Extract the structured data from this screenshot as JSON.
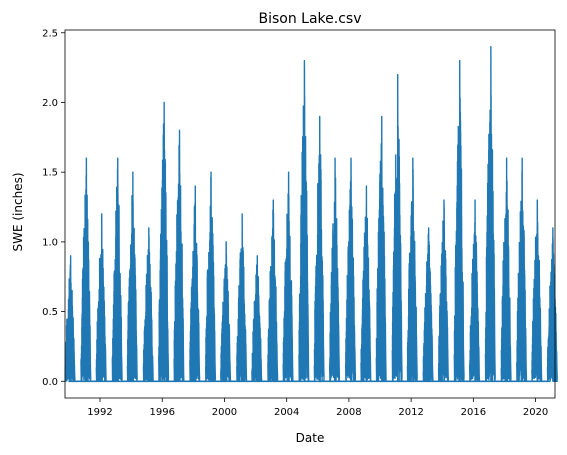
{
  "chart_data": {
    "type": "line",
    "title": "Bison Lake.csv",
    "xlabel": "Date",
    "ylabel": "SWE (inches)",
    "xlim": [
      "1989-10-01",
      "2021-04-01"
    ],
    "ylim": [
      -0.12,
      2.52
    ],
    "x_ticks": [
      "1992",
      "1996",
      "2000",
      "2004",
      "2008",
      "2012",
      "2016",
      "2020"
    ],
    "y_ticks": [
      "0.0",
      "0.5",
      "1.0",
      "1.5",
      "2.0",
      "2.5"
    ],
    "grid": false,
    "legend": "none",
    "series_color": "#1f77b4",
    "season_peaks": [
      {
        "season": "1990",
        "date": "1990-02-10",
        "peak_swe": 0.9
      },
      {
        "season": "1991",
        "date": "1991-02-15",
        "peak_swe": 1.6
      },
      {
        "season": "1992",
        "date": "1992-02-10",
        "peak_swe": 1.2
      },
      {
        "season": "1993",
        "date": "1993-02-20",
        "peak_swe": 1.6
      },
      {
        "season": "1994",
        "date": "1994-02-10",
        "peak_swe": 1.5
      },
      {
        "season": "1995",
        "date": "1995-02-20",
        "peak_swe": 1.1
      },
      {
        "season": "1996",
        "date": "1996-02-15",
        "peak_swe": 2.0
      },
      {
        "season": "1997",
        "date": "1997-02-10",
        "peak_swe": 1.8
      },
      {
        "season": "1998",
        "date": "1998-02-15",
        "peak_swe": 1.4
      },
      {
        "season": "1999",
        "date": "1999-02-20",
        "peak_swe": 1.5
      },
      {
        "season": "2000",
        "date": "2000-02-10",
        "peak_swe": 1.0
      },
      {
        "season": "2001",
        "date": "2001-02-20",
        "peak_swe": 1.2
      },
      {
        "season": "2002",
        "date": "2002-02-10",
        "peak_swe": 0.9
      },
      {
        "season": "2003",
        "date": "2003-02-20",
        "peak_swe": 1.3
      },
      {
        "season": "2004",
        "date": "2004-02-15",
        "peak_swe": 1.5
      },
      {
        "season": "2005",
        "date": "2005-02-20",
        "peak_swe": 2.3
      },
      {
        "season": "2006",
        "date": "2006-02-15",
        "peak_swe": 1.9
      },
      {
        "season": "2007",
        "date": "2007-02-10",
        "peak_swe": 1.6
      },
      {
        "season": "2008",
        "date": "2008-02-20",
        "peak_swe": 1.6
      },
      {
        "season": "2009",
        "date": "2009-02-15",
        "peak_swe": 1.4
      },
      {
        "season": "2010",
        "date": "2010-02-10",
        "peak_swe": 1.9
      },
      {
        "season": "2011",
        "date": "2011-02-20",
        "peak_swe": 2.2
      },
      {
        "season": "2012",
        "date": "2012-02-10",
        "peak_swe": 1.6
      },
      {
        "season": "2013",
        "date": "2013-02-15",
        "peak_swe": 1.1
      },
      {
        "season": "2014",
        "date": "2014-02-10",
        "peak_swe": 1.3
      },
      {
        "season": "2015",
        "date": "2015-02-15",
        "peak_swe": 2.3
      },
      {
        "season": "2016",
        "date": "2016-02-10",
        "peak_swe": 1.3
      },
      {
        "season": "2017",
        "date": "2017-02-15",
        "peak_swe": 2.4
      },
      {
        "season": "2018",
        "date": "2018-02-20",
        "peak_swe": 1.6
      },
      {
        "season": "2019",
        "date": "2019-02-20",
        "peak_swe": 1.6
      },
      {
        "season": "2020",
        "date": "2020-02-10",
        "peak_swe": 1.3
      },
      {
        "season": "2021",
        "date": "2021-02-10",
        "peak_swe": 1.1
      }
    ]
  }
}
